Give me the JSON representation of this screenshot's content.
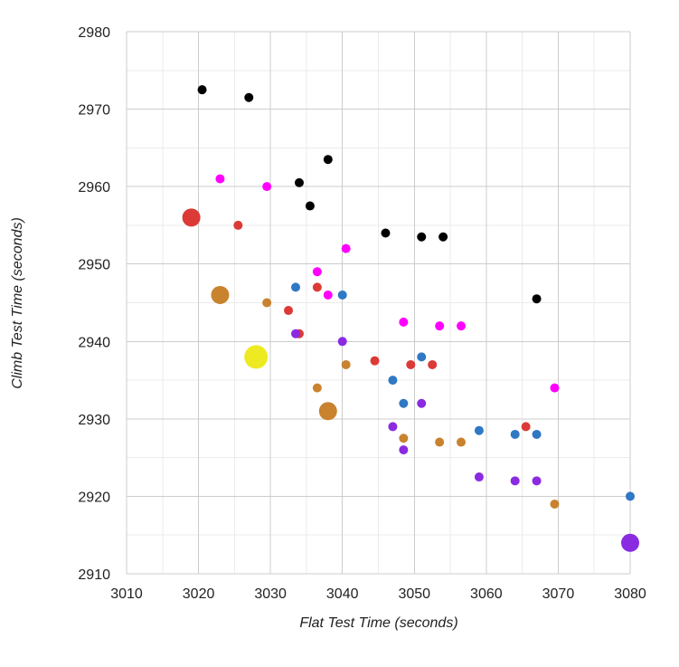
{
  "chart_data": {
    "type": "scatter",
    "title": "",
    "xlabel": "Flat Test Time (seconds)",
    "ylabel": "Climb Test Time (seconds)",
    "xlim": [
      3010,
      3080
    ],
    "ylim": [
      2910,
      2980
    ],
    "xticks": [
      3010,
      3020,
      3030,
      3040,
      3050,
      3060,
      3070,
      3080
    ],
    "yticks": [
      2910,
      2920,
      2930,
      2940,
      2950,
      2960,
      2970,
      2980
    ],
    "grid": true,
    "legend": "none",
    "colors": {
      "black": "#000000",
      "magenta": "#ff00ff",
      "red": "#dc3a36",
      "orange": "#c9822e",
      "blue": "#2f78c4",
      "purple": "#8a2be2",
      "yellow": "#eeea22",
      "grid_major": "#cccccc",
      "grid_minor": "#ebebeb"
    },
    "series": [
      {
        "color_key": "black",
        "size": "small",
        "points": [
          [
            3020.5,
            2972.5
          ],
          [
            3027,
            2971.5
          ],
          [
            3038,
            2963.5
          ],
          [
            3034,
            2960.5
          ],
          [
            3035.5,
            2957.5
          ],
          [
            3046,
            2954
          ],
          [
            3051,
            2953.5
          ],
          [
            3054,
            2953.5
          ],
          [
            3067,
            2945.5
          ]
        ]
      },
      {
        "color_key": "magenta",
        "size": "small",
        "points": [
          [
            3023,
            2961
          ],
          [
            3029.5,
            2960
          ],
          [
            3040.5,
            2952
          ],
          [
            3036.5,
            2949
          ],
          [
            3038,
            2946
          ],
          [
            3048.5,
            2942.5
          ],
          [
            3053.5,
            2942
          ],
          [
            3056.5,
            2942
          ],
          [
            3069.5,
            2934
          ]
        ]
      },
      {
        "color_key": "red",
        "size": "small",
        "points": [
          [
            3025.5,
            2955
          ],
          [
            3036.5,
            2947
          ],
          [
            3032.5,
            2944
          ],
          [
            3034,
            2941
          ],
          [
            3044.5,
            2937.5
          ],
          [
            3049.5,
            2937
          ],
          [
            3052.5,
            2937
          ],
          [
            3065.5,
            2929
          ]
        ]
      },
      {
        "color_key": "red",
        "size": "large",
        "points": [
          [
            3019,
            2956
          ]
        ]
      },
      {
        "color_key": "orange",
        "size": "small",
        "points": [
          [
            3029.5,
            2945
          ],
          [
            3040.5,
            2937
          ],
          [
            3036.5,
            2934
          ],
          [
            3048.5,
            2927.5
          ],
          [
            3053.5,
            2927
          ],
          [
            3056.5,
            2927
          ],
          [
            3069.5,
            2919
          ]
        ]
      },
      {
        "color_key": "orange",
        "size": "large",
        "points": [
          [
            3023,
            2946
          ],
          [
            3038,
            2931
          ]
        ]
      },
      {
        "color_key": "blue",
        "size": "small",
        "points": [
          [
            3033.5,
            2947
          ],
          [
            3040,
            2946
          ],
          [
            3051,
            2938
          ],
          [
            3047,
            2935
          ],
          [
            3048.5,
            2932
          ],
          [
            3059,
            2928.5
          ],
          [
            3064,
            2928
          ],
          [
            3067,
            2928
          ],
          [
            3080,
            2920
          ]
        ]
      },
      {
        "color_key": "purple",
        "size": "small",
        "points": [
          [
            3033.5,
            2941
          ],
          [
            3040,
            2940
          ],
          [
            3051,
            2932
          ],
          [
            3047,
            2929
          ],
          [
            3048.5,
            2926
          ],
          [
            3059,
            2922.5
          ],
          [
            3064,
            2922
          ],
          [
            3067,
            2922
          ]
        ]
      },
      {
        "color_key": "purple",
        "size": "large",
        "points": [
          [
            3080,
            2914
          ]
        ]
      },
      {
        "color_key": "yellow",
        "size": "xlarge",
        "points": [
          [
            3028,
            2938
          ]
        ]
      }
    ]
  }
}
